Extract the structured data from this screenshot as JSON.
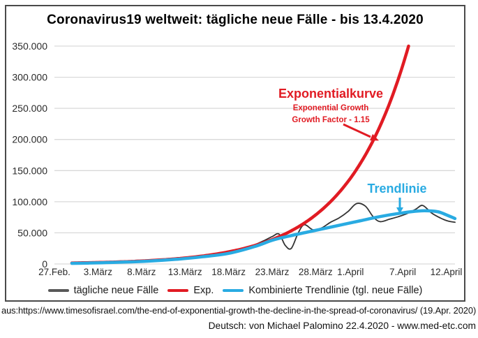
{
  "colors": {
    "exp_red": "#e11b23",
    "trend_blue": "#29abe2",
    "cases_gray": "#595959",
    "text": "#111111"
  },
  "footer": {
    "source_prefix": "aus:",
    "source_url": "https://www.timesofisrael.com/the-end-of-exponential-growth-the-decline-in-the-spread-of-coronavirus/",
    "source_date": "(19.Apr. 2020)",
    "credit": "Deutsch: von Michael Palomino 22.4.2020 - www.med-etc.com"
  },
  "chart_data": {
    "type": "line",
    "title": "Coronavirus19 weltweit:  tägliche neue Fälle - bis 13.4.2020",
    "grid": "horizontal",
    "legend_position": "bottom",
    "x_axis": {
      "unit": "days since 27.Feb.2020",
      "range_days": [
        0,
        46
      ],
      "tick_days": [
        0,
        5,
        10,
        15,
        20,
        25,
        30,
        34,
        40,
        45
      ],
      "tick_labels": [
        "27.Feb.",
        "3.März",
        "8.März",
        "13.März",
        "18.März",
        "23.März",
        "28.März",
        "1.April",
        "7.April",
        "12.April"
      ]
    },
    "y_axis": {
      "range": [
        0,
        350000
      ],
      "ticks": [
        0,
        50000,
        100000,
        150000,
        200000,
        250000,
        300000,
        350000
      ],
      "tick_labels": [
        "0",
        "50.000",
        "100.000",
        "150.000",
        "200.000",
        "250.000",
        "300.000",
        "350.000"
      ]
    },
    "annotations": {
      "exp_title": "Exponentialkurve",
      "exp_sub1": "Exponential Growth",
      "exp_sub2": "Growth Factor - 1.15",
      "trend_title": "Trendlinie"
    },
    "legend": [
      {
        "label": "tägliche neue Fälle",
        "color": "#595959"
      },
      {
        "label": "Exp.",
        "color": "#e11b23"
      },
      {
        "label": "Kombinierte Trendlinie (tgl. neue Fälle)",
        "color": "#29abe2"
      }
    ],
    "series": [
      {
        "name": "tägliche neue Fälle",
        "color": "#333333",
        "width": 1.8,
        "points": [
          [
            2,
            1300
          ],
          [
            4,
            1800
          ],
          [
            6,
            2300
          ],
          [
            8,
            3000
          ],
          [
            10,
            4000
          ],
          [
            12,
            6000
          ],
          [
            14,
            8500
          ],
          [
            16,
            11000
          ],
          [
            18,
            15000
          ],
          [
            20,
            19000
          ],
          [
            21,
            23000
          ],
          [
            22,
            27000
          ],
          [
            23,
            31000
          ],
          [
            24,
            37000
          ],
          [
            25,
            44000
          ],
          [
            25.8,
            48000
          ],
          [
            26.5,
            30000
          ],
          [
            27.2,
            25000
          ],
          [
            28,
            50000
          ],
          [
            28.7,
            63000
          ],
          [
            29.7,
            55000
          ],
          [
            30.7,
            58000
          ],
          [
            31.7,
            67000
          ],
          [
            32.7,
            74000
          ],
          [
            33.7,
            84000
          ],
          [
            34.7,
            97000
          ],
          [
            35.7,
            93000
          ],
          [
            36.6,
            76000
          ],
          [
            37.4,
            68000
          ],
          [
            38.5,
            72000
          ],
          [
            39.5,
            76000
          ],
          [
            40.5,
            81000
          ],
          [
            41.5,
            88000
          ],
          [
            42.3,
            94000
          ],
          [
            43.3,
            82000
          ],
          [
            44.3,
            74000
          ],
          [
            45.2,
            69000
          ],
          [
            46,
            67000
          ]
        ]
      },
      {
        "name": "Exp.",
        "color": "#e11b23",
        "width": 4.5,
        "kind": "exponential",
        "base_day": 0,
        "base_value": 1190,
        "growth_factor": 1.15,
        "start_day": 2,
        "cap_value": 350000
      },
      {
        "name": "Kombinierte Trendlinie (tgl. neue Fälle)",
        "color": "#29abe2",
        "width": 4.5,
        "points": [
          [
            2,
            1000
          ],
          [
            5,
            1800
          ],
          [
            8,
            3000
          ],
          [
            11,
            4800
          ],
          [
            14,
            7500
          ],
          [
            17,
            11500
          ],
          [
            20,
            17000
          ],
          [
            23,
            28000
          ],
          [
            25,
            38000
          ],
          [
            27,
            45000
          ],
          [
            29,
            51000
          ],
          [
            31,
            57000
          ],
          [
            33,
            63000
          ],
          [
            35,
            69000
          ],
          [
            37,
            75000
          ],
          [
            39,
            80000
          ],
          [
            41,
            84000
          ],
          [
            42.5,
            85500
          ],
          [
            44,
            84000
          ],
          [
            45,
            79000
          ],
          [
            46,
            73000
          ]
        ]
      }
    ]
  }
}
